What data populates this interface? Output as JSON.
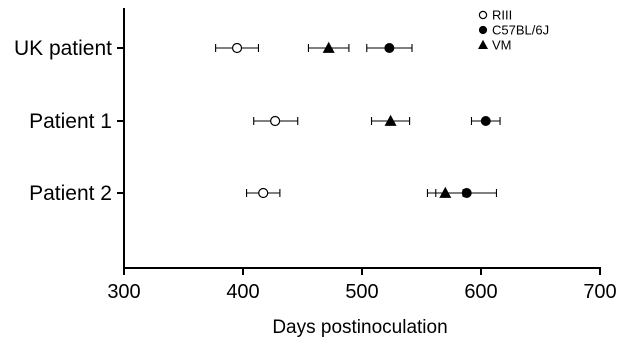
{
  "chart_data": {
    "type": "scatter",
    "xlabel": "Days postinoculation",
    "xlim": [
      300,
      700
    ],
    "xticks": [
      300,
      400,
      500,
      600,
      700
    ],
    "categories": [
      "UK patient",
      "Patient 1",
      "Patient 2"
    ],
    "legend_position": "top-right",
    "grid": false,
    "series": [
      {
        "name": "RIII",
        "marker": "open-circle",
        "color": "#000000",
        "points": [
          {
            "category": "UK patient",
            "x": 395,
            "xerr_low": 377,
            "xerr_high": 413
          },
          {
            "category": "Patient 1",
            "x": 427,
            "xerr_low": 409,
            "xerr_high": 446
          },
          {
            "category": "Patient 2",
            "x": 417,
            "xerr_low": 403,
            "xerr_high": 431
          }
        ]
      },
      {
        "name": "C57BL/6J",
        "marker": "filled-circle",
        "color": "#000000",
        "points": [
          {
            "category": "UK patient",
            "x": 523,
            "xerr_low": 504,
            "xerr_high": 542
          },
          {
            "category": "Patient 1",
            "x": 604,
            "xerr_low": 592,
            "xerr_high": 616
          },
          {
            "category": "Patient 2",
            "x": 588,
            "xerr_low": 562,
            "xerr_high": 613
          }
        ]
      },
      {
        "name": "VM",
        "marker": "filled-triangle",
        "color": "#000000",
        "points": [
          {
            "category": "UK patient",
            "x": 472,
            "xerr_low": 455,
            "xerr_high": 489
          },
          {
            "category": "Patient 1",
            "x": 524,
            "xerr_low": 508,
            "xerr_high": 540
          },
          {
            "category": "Patient 2",
            "x": 570,
            "xerr_low": 555,
            "xerr_high": 585
          }
        ]
      }
    ]
  }
}
